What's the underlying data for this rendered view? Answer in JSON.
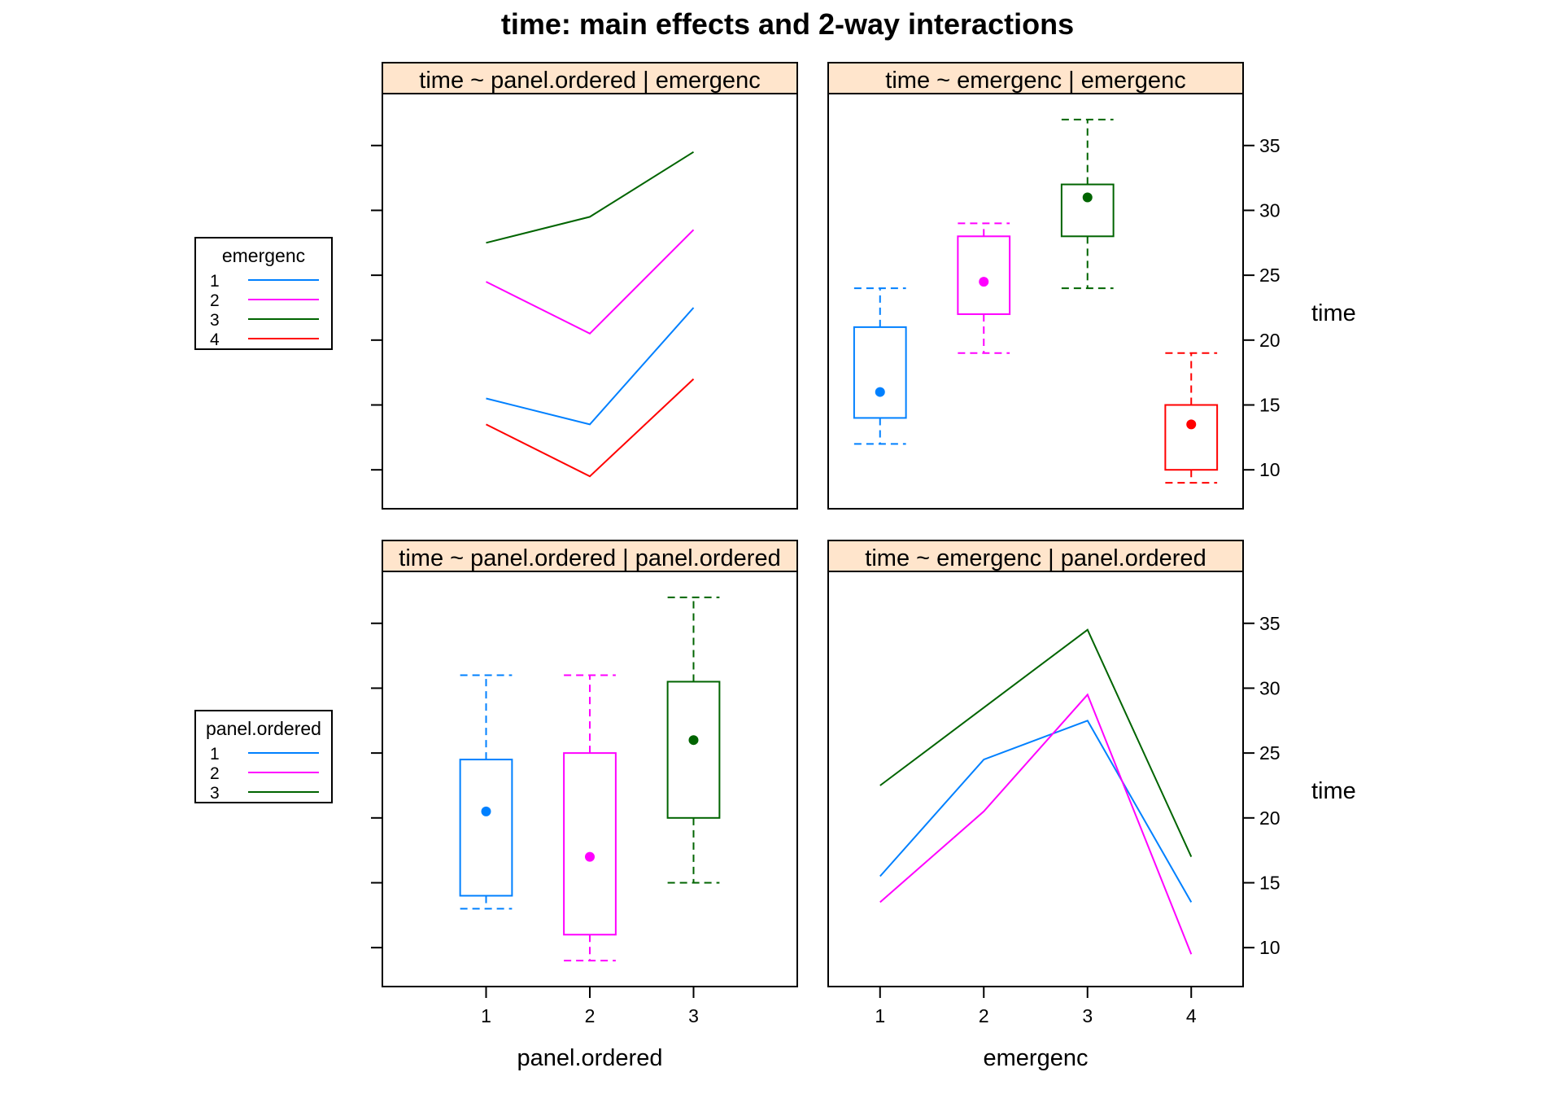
{
  "title": "time: main effects and 2-way interactions",
  "colors": {
    "1": "#0080ff",
    "2": "#ff00ff",
    "3": "#006400",
    "4": "#ff0000",
    "strip_fill": "#ffe5cc"
  },
  "legends": [
    {
      "title": "emergenc",
      "items": [
        "1",
        "2",
        "3",
        "4"
      ],
      "colors": [
        "#0080ff",
        "#ff00ff",
        "#006400",
        "#ff0000"
      ]
    },
    {
      "title": "panel.ordered",
      "items": [
        "1",
        "2",
        "3"
      ],
      "colors": [
        "#0080ff",
        "#ff00ff",
        "#006400"
      ]
    }
  ],
  "axes": {
    "y_ticks": [
      "10",
      "15",
      "20",
      "25",
      "30",
      "35"
    ],
    "y_label": "time",
    "x_label_left": "panel.ordered",
    "x_label_right": "emergenc",
    "x_ticks_left": [
      "1",
      "2",
      "3"
    ],
    "x_ticks_right": [
      "1",
      "2",
      "3",
      "4"
    ]
  },
  "chart_data": [
    {
      "type": "line",
      "strip": "time ~ panel.ordered | emergenc",
      "xlabel": "panel.ordered",
      "ylabel": "time",
      "x": [
        1,
        2,
        3
      ],
      "xlim": [
        0,
        4
      ],
      "ylim": [
        7,
        39
      ],
      "series": [
        {
          "name": "1",
          "values": [
            15.5,
            13.5,
            22.5
          ]
        },
        {
          "name": "2",
          "values": [
            24.5,
            20.5,
            28.5
          ]
        },
        {
          "name": "3",
          "values": [
            27.5,
            29.5,
            34.5
          ]
        },
        {
          "name": "4",
          "values": [
            13.5,
            9.5,
            17
          ]
        }
      ]
    },
    {
      "type": "box",
      "strip": "time ~ emergenc | emergenc",
      "xlabel": "emergenc",
      "ylabel": "time",
      "xlim": [
        0.5,
        4.5
      ],
      "ylim": [
        7,
        39
      ],
      "boxes": [
        {
          "x": 1,
          "whisker_low": 12,
          "q1": 14,
          "median": 16,
          "q3": 21,
          "whisker_high": 24
        },
        {
          "x": 2,
          "whisker_low": 19,
          "q1": 22,
          "median": 24.5,
          "q3": 28,
          "whisker_high": 29
        },
        {
          "x": 3,
          "whisker_low": 24,
          "q1": 28,
          "median": 31,
          "q3": 32,
          "whisker_high": 37
        },
        {
          "x": 4,
          "whisker_low": 9,
          "q1": 10,
          "median": 13.5,
          "q3": 15,
          "whisker_high": 19
        }
      ]
    },
    {
      "type": "box",
      "strip": "time ~ panel.ordered | panel.ordered",
      "xlabel": "panel.ordered",
      "ylabel": "time",
      "xlim": [
        0,
        4
      ],
      "ylim": [
        7,
        39
      ],
      "boxes": [
        {
          "x": 1,
          "whisker_low": 13,
          "q1": 14,
          "median": 20.5,
          "q3": 24.5,
          "whisker_high": 31
        },
        {
          "x": 2,
          "whisker_low": 9,
          "q1": 11,
          "median": 17,
          "q3": 25,
          "whisker_high": 31
        },
        {
          "x": 3,
          "whisker_low": 15,
          "q1": 20,
          "median": 26,
          "q3": 30.5,
          "whisker_high": 37
        }
      ]
    },
    {
      "type": "line",
      "strip": "time ~ emergenc | panel.ordered",
      "xlabel": "emergenc",
      "ylabel": "time",
      "x": [
        1,
        2,
        3,
        4
      ],
      "xlim": [
        0.5,
        4.5
      ],
      "ylim": [
        7,
        39
      ],
      "series": [
        {
          "name": "1",
          "values": [
            15.5,
            24.5,
            27.5,
            13.5
          ]
        },
        {
          "name": "2",
          "values": [
            13.5,
            20.5,
            29.5,
            9.5
          ]
        },
        {
          "name": "3",
          "values": [
            22.5,
            28.5,
            34.5,
            17
          ]
        }
      ]
    }
  ]
}
